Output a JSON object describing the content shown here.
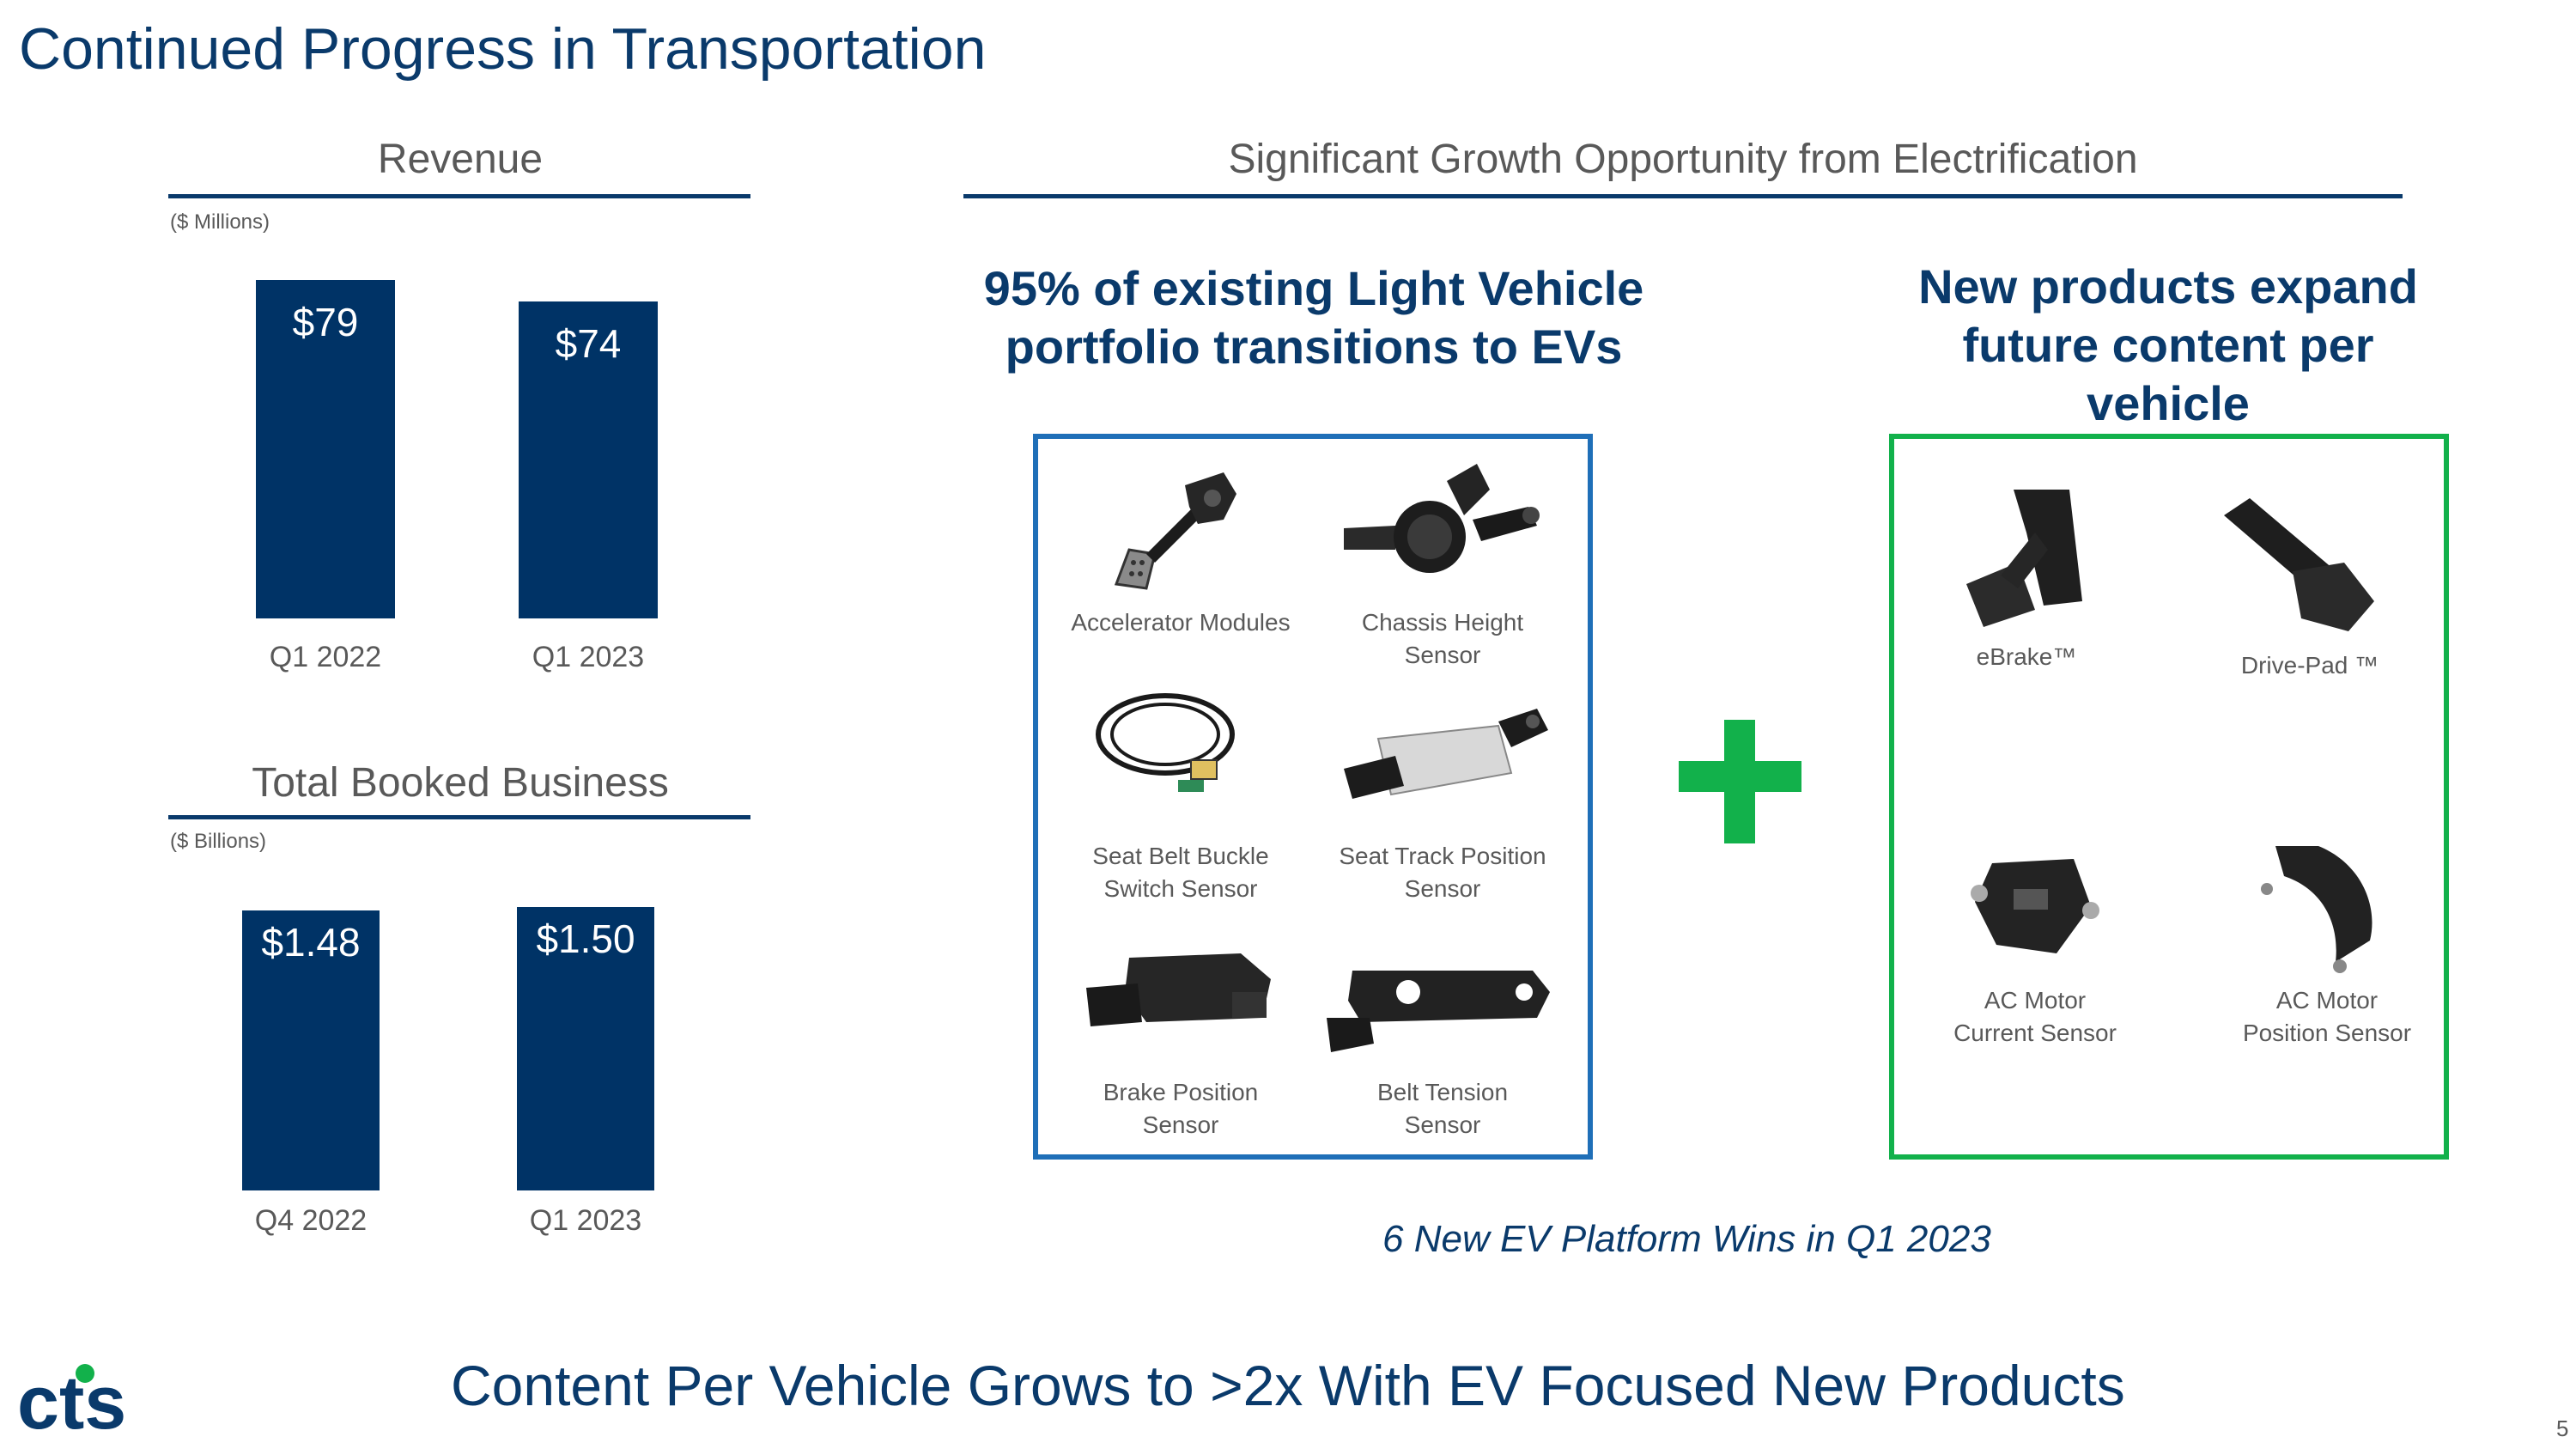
{
  "slide": {
    "title": "Continued Progress in Transportation",
    "page_number": "5",
    "bottom_statement": "Content Per Vehicle Grows to >2x With EV Focused New Products",
    "logo_text": "cts",
    "accent_colors": {
      "navy": "#0a3a6b",
      "bar": "#003366",
      "blue_box": "#1f6fb8",
      "green_box": "#12b14b"
    }
  },
  "revenue": {
    "title": "Revenue",
    "unit": "($ Millions)",
    "chart_data": {
      "type": "bar",
      "title": "Revenue",
      "ylabel": "($ Millions)",
      "categories": [
        "Q1 2022",
        "Q1 2023"
      ],
      "values": [
        79,
        74
      ],
      "labels": [
        "$79",
        "$74"
      ],
      "ylim": [
        0,
        79
      ]
    }
  },
  "booked": {
    "title": "Total Booked Business",
    "unit": "($ Billions)",
    "chart_data": {
      "type": "bar",
      "title": "Total Booked Business",
      "ylabel": "($ Billions)",
      "categories": [
        "Q4 2022",
        "Q1 2023"
      ],
      "values": [
        1.48,
        1.5
      ],
      "labels": [
        "$1.48",
        "$1.50"
      ],
      "ylim": [
        0,
        1.5
      ]
    }
  },
  "electrification": {
    "title": "Significant Growth Opportunity from Electrification",
    "existing": {
      "headline": "95% of existing Light Vehicle portfolio transitions to EVs",
      "products": [
        {
          "label": "Accelerator Modules"
        },
        {
          "label": "Chassis Height Sensor"
        },
        {
          "label": "Seat Belt Buckle\nSwitch Sensor"
        },
        {
          "label": "Seat Track Position\nSensor"
        },
        {
          "label": "Brake Position\nSensor"
        },
        {
          "label": "Belt Tension\nSensor"
        }
      ]
    },
    "new": {
      "headline": "New products expand future content per vehicle",
      "products": [
        {
          "label": "eBrake™"
        },
        {
          "label": "Drive-Pad ™"
        },
        {
          "label": "AC Motor\nCurrent Sensor"
        },
        {
          "label": "AC Motor\nPosition Sensor"
        }
      ]
    },
    "note": "6 New EV Platform Wins in Q1 2023"
  }
}
